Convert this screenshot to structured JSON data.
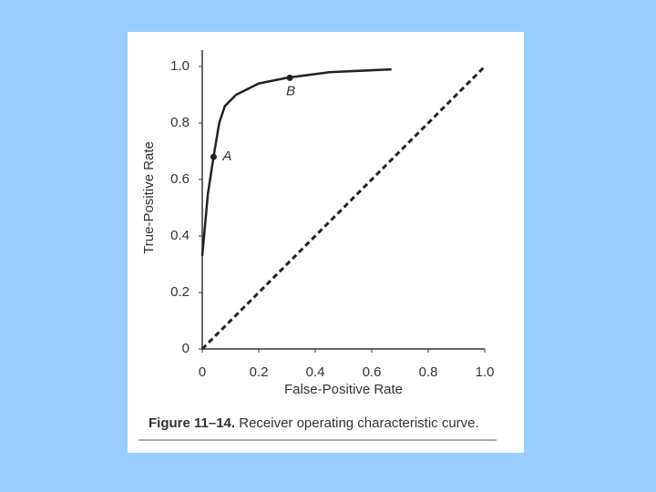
{
  "chart_data": {
    "type": "line",
    "xlabel": "False-Positive Rate",
    "ylabel": "True-Positive Rate",
    "caption_bold": "Figure 11–14.",
    "caption": "Receiver operating characteristic curve.",
    "xlim": [
      0,
      1
    ],
    "ylim": [
      0,
      1
    ],
    "xticks": [
      0,
      0.2,
      0.4,
      0.6,
      0.8,
      {
        "value": 1,
        "label": "1.0"
      }
    ],
    "yticks": [
      0,
      0.2,
      0.4,
      0.6,
      0.8,
      {
        "value": 1,
        "label": "1.0"
      }
    ],
    "series": [
      {
        "color": "#222222",
        "dash": false,
        "x": [
          0,
          0.02,
          0.04,
          0.06,
          0.08,
          0.12,
          0.2,
          0.3,
          0.45,
          0.67
        ],
        "values": [
          0.33,
          0.55,
          0.68,
          0.8,
          0.86,
          0.9,
          0.94,
          0.96,
          0.98,
          0.99
        ]
      },
      {
        "color": "#222222",
        "dash": true,
        "x": [
          0,
          1
        ],
        "values": [
          0,
          1
        ]
      }
    ],
    "points": [
      {
        "label": "A",
        "x": 0.04,
        "y": 0.68
      },
      {
        "label": "B",
        "x": 0.31,
        "y": 0.96
      }
    ]
  }
}
